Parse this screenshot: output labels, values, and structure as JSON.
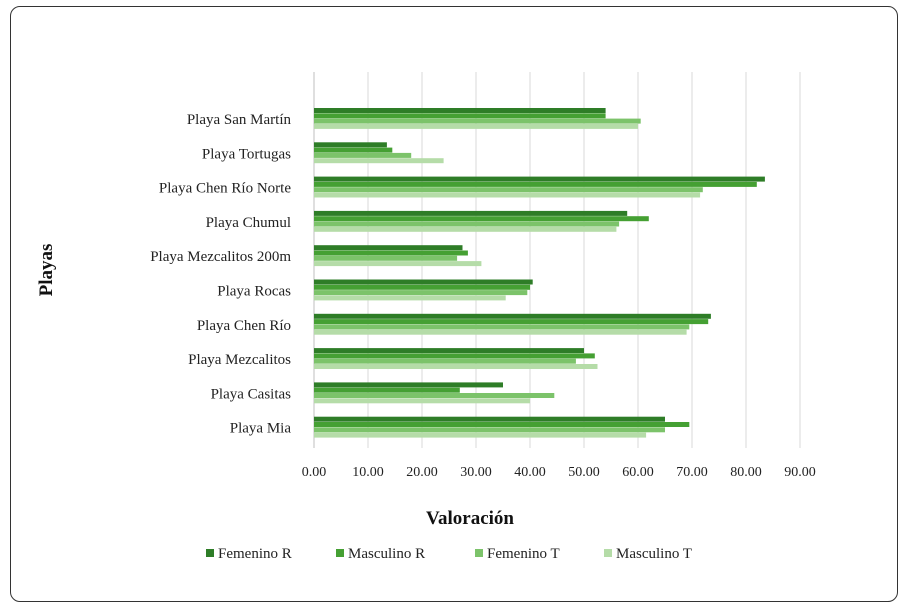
{
  "chart_data": {
    "type": "bar",
    "orientation": "horizontal",
    "title": "",
    "xlabel": "Valoración",
    "ylabel": "Playas",
    "xlim": [
      0,
      90
    ],
    "xticks": [
      "0.00",
      "10.00",
      "20.00",
      "30.00",
      "40.00",
      "50.00",
      "60.00",
      "70.00",
      "80.00",
      "90.00"
    ],
    "grid": "vertical",
    "legend_position": "bottom",
    "categories": [
      "Playa San Martín",
      "Playa Tortugas",
      "Playa Chen Río Norte",
      "Playa Chumul",
      "Playa Mezcalitos 200m",
      "Playa Rocas",
      "Playa Chen Río",
      "Playa Mezcalitos",
      "Playa Casitas",
      "Playa Mia"
    ],
    "series": [
      {
        "name": "Femenino R",
        "color": "#2e7d27",
        "values": [
          54.0,
          13.5,
          83.5,
          58.0,
          27.5,
          40.5,
          73.5,
          50.0,
          35.0,
          65.0
        ]
      },
      {
        "name": "Masculino R",
        "color": "#45a033",
        "values": [
          54.0,
          14.5,
          82.0,
          62.0,
          28.5,
          40.0,
          73.0,
          52.0,
          27.0,
          69.5
        ]
      },
      {
        "name": "Femenino T",
        "color": "#7cc36a",
        "values": [
          60.5,
          18.0,
          72.0,
          56.5,
          26.5,
          39.5,
          69.5,
          48.5,
          44.5,
          65.0
        ]
      },
      {
        "name": "Masculino T",
        "color": "#b5dca8",
        "values": [
          60.0,
          24.0,
          71.5,
          56.0,
          31.0,
          35.5,
          69.0,
          52.5,
          40.0,
          61.5
        ]
      }
    ]
  }
}
